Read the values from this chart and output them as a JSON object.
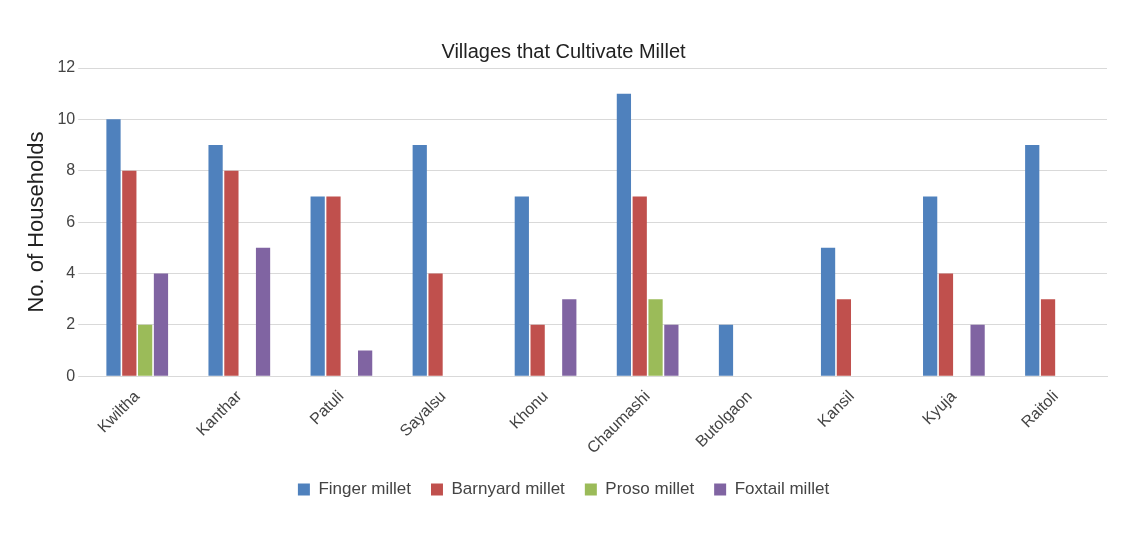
{
  "chart_data": {
    "type": "bar",
    "title": "Villages that Cultivate Millet",
    "ylabel": "No. of Households",
    "categories": [
      "Kwiltha",
      "Kanthar",
      "Patuli",
      "Sayalsu",
      "Khonu",
      "Chaumashi",
      "Butolgaon",
      "Kansil",
      "Kyuja",
      "Raitoli"
    ],
    "series": [
      {
        "name": "Finger millet",
        "color": "#4f81bd",
        "values": [
          10,
          9,
          7,
          9,
          7,
          11,
          2,
          5,
          7,
          9
        ]
      },
      {
        "name": "Barnyard millet",
        "color": "#c0504d",
        "values": [
          8,
          8,
          7,
          4,
          2,
          7,
          0,
          3,
          4,
          3
        ]
      },
      {
        "name": "Proso millet",
        "color": "#9bbb59",
        "values": [
          2,
          0,
          0,
          0,
          0,
          3,
          0,
          0,
          0,
          0
        ]
      },
      {
        "name": "Foxtail millet",
        "color": "#8064a2",
        "values": [
          4,
          5,
          1,
          0,
          3,
          2,
          0,
          0,
          2,
          0
        ]
      }
    ],
    "ylim": [
      0,
      12
    ],
    "yticks": [
      0,
      2,
      4,
      6,
      8,
      10,
      12
    ],
    "grid": "y",
    "legend": "bottom"
  }
}
